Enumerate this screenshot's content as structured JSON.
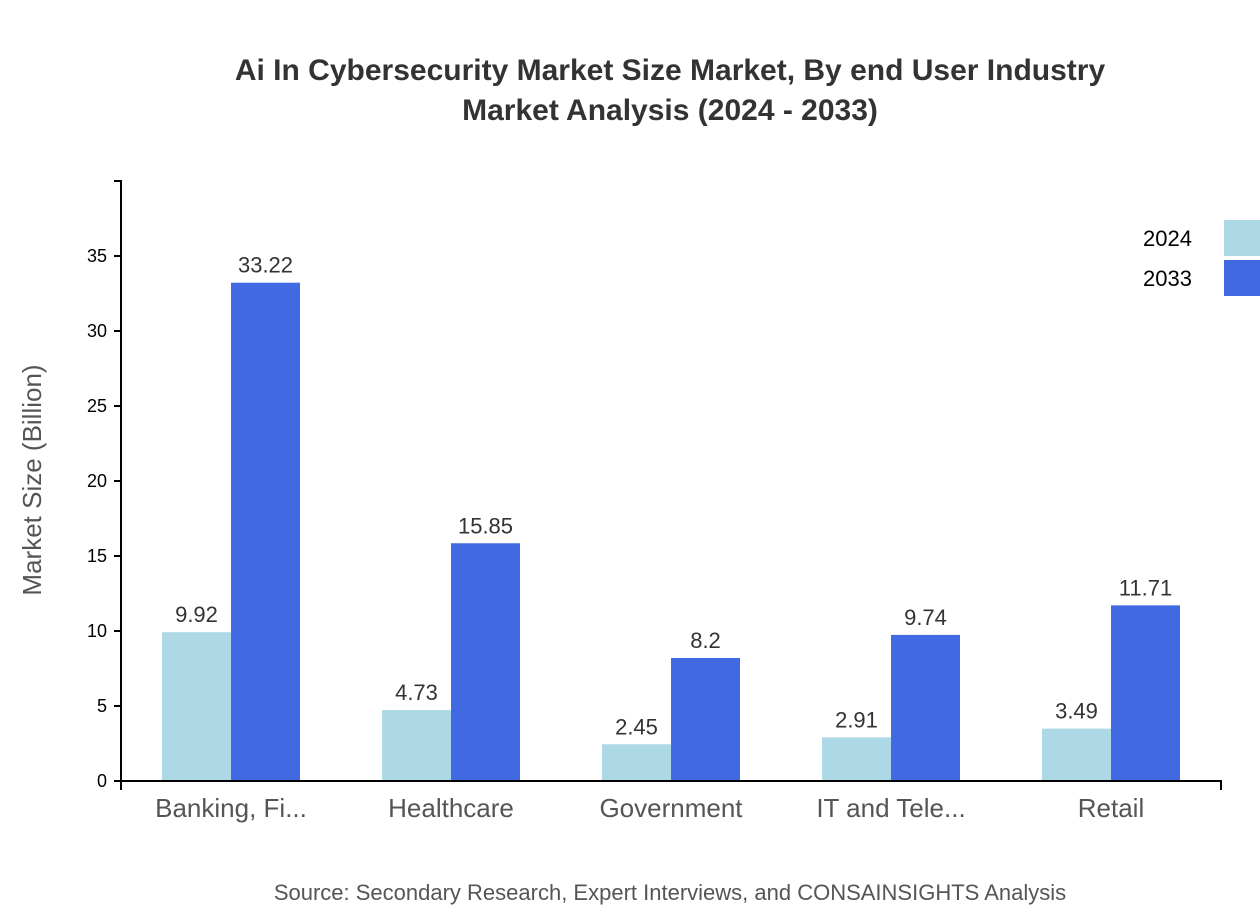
{
  "chart_data": {
    "type": "bar",
    "title": [
      "Ai In Cybersecurity Market Size Market, By end User Industry",
      "Market Analysis (2024 - 2033)"
    ],
    "xlabel": "",
    "ylabel": "Market Size (Billion)",
    "ylim": [
      0,
      40
    ],
    "yticks": [
      0,
      5,
      10,
      15,
      20,
      25,
      30,
      35
    ],
    "categories": [
      "Banking, Fi...",
      "Healthcare",
      "Government",
      "IT and Tele...",
      "Retail"
    ],
    "series": [
      {
        "name": "2024",
        "color": "#add8e6",
        "values": [
          9.92,
          4.73,
          2.45,
          2.91,
          3.49
        ]
      },
      {
        "name": "2033",
        "color": "#4169e1",
        "values": [
          33.22,
          15.85,
          8.2,
          9.74,
          11.71
        ]
      }
    ],
    "legend_position": "top-right",
    "grid": false,
    "source": "Source: Secondary Research, Expert Interviews, and CONSAINSIGHTS Analysis"
  }
}
